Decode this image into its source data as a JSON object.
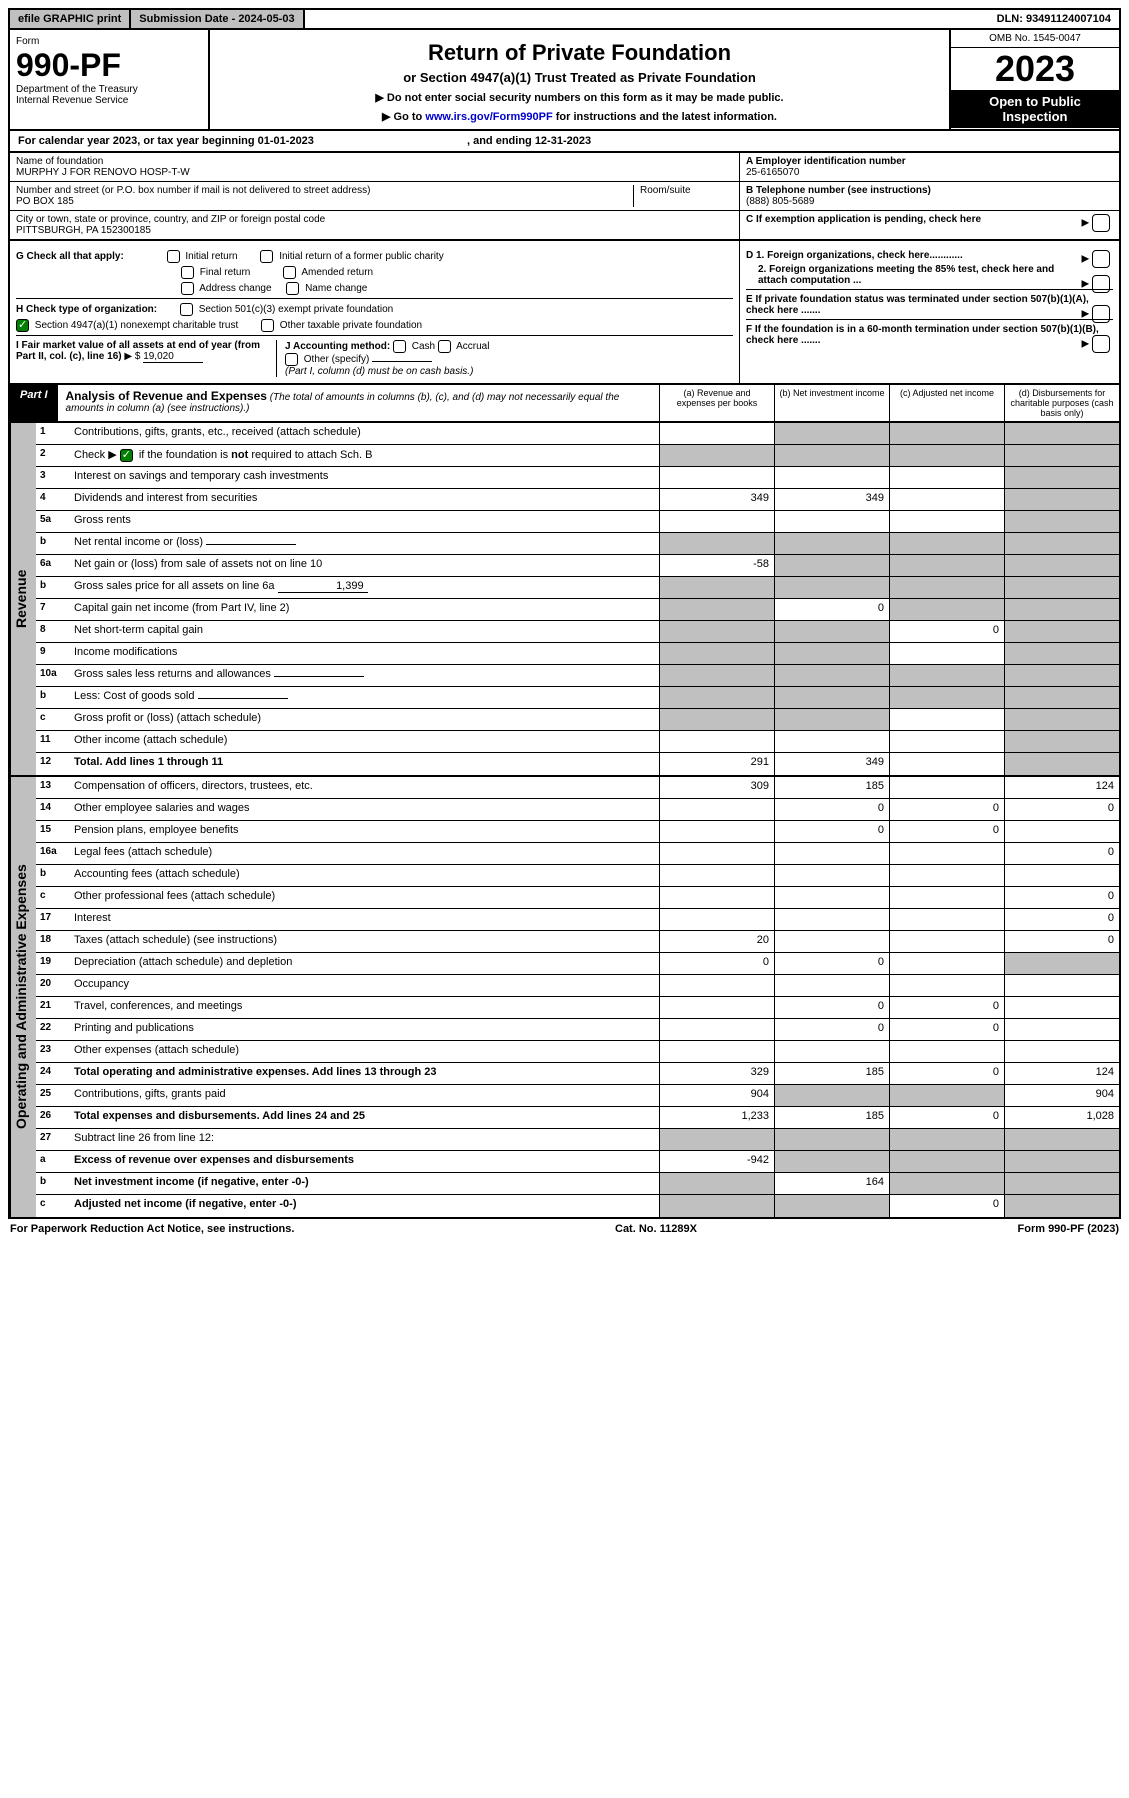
{
  "top": {
    "efile": "efile GRAPHIC print",
    "submission": "Submission Date - 2024-05-03",
    "dln": "DLN: 93491124007104"
  },
  "header": {
    "form_label": "Form",
    "form_num": "990-PF",
    "dept": "Department of the Treasury\nInternal Revenue Service",
    "title": "Return of Private Foundation",
    "subtitle": "or Section 4947(a)(1) Trust Treated as Private Foundation",
    "note1": "▶ Do not enter social security numbers on this form as it may be made public.",
    "note2_pre": "▶ Go to ",
    "note2_link": "www.irs.gov/Form990PF",
    "note2_post": " for instructions and the latest information.",
    "omb": "OMB No. 1545-0047",
    "year": "2023",
    "open": "Open to Public Inspection"
  },
  "cal": {
    "text": "For calendar year 2023, or tax year beginning 01-01-2023",
    "ending": ", and ending 12-31-2023"
  },
  "addr": {
    "name_label": "Name of foundation",
    "name": "MURPHY J FOR RENOVO HOSP-T-W",
    "street_label": "Number and street (or P.O. box number if mail is not delivered to street address)",
    "street": "PO BOX 185",
    "room_label": "Room/suite",
    "city_label": "City or town, state or province, country, and ZIP or foreign postal code",
    "city": "PITTSBURGH, PA  152300185",
    "ein_label": "A Employer identification number",
    "ein": "25-6165070",
    "phone_label": "B Telephone number (see instructions)",
    "phone": "(888) 805-5689",
    "c_label": "C If exemption application is pending, check here"
  },
  "checks": {
    "g_label": "G Check all that apply:",
    "g_opts": [
      "Initial return",
      "Initial return of a former public charity",
      "Final return",
      "Amended return",
      "Address change",
      "Name change"
    ],
    "h_label": "H Check type of organization:",
    "h_501": "Section 501(c)(3) exempt private foundation",
    "h_4947": "Section 4947(a)(1) nonexempt charitable trust",
    "h_other": "Other taxable private foundation",
    "i_label": "I Fair market value of all assets at end of year (from Part II, col. (c), line 16)",
    "i_val": "19,020",
    "j_label": "J Accounting method:",
    "j_cash": "Cash",
    "j_accrual": "Accrual",
    "j_other": "Other (specify)",
    "j_note": "(Part I, column (d) must be on cash basis.)",
    "d1": "D 1. Foreign organizations, check here............",
    "d2": "2. Foreign organizations meeting the 85% test, check here and attach computation ...",
    "e": "E  If private foundation status was terminated under section 507(b)(1)(A), check here .......",
    "f": "F  If the foundation is in a 60-month termination under section 507(b)(1)(B), check here ......."
  },
  "part1": {
    "label": "Part I",
    "title": "Analysis of Revenue and Expenses",
    "title_note": "(The total of amounts in columns (b), (c), and (d) may not necessarily equal the amounts in column (a) (see instructions).)",
    "col_a": "(a) Revenue and expenses per books",
    "col_b": "(b) Net investment income",
    "col_c": "(c) Adjusted net income",
    "col_d": "(d) Disbursements for charitable purposes (cash basis only)"
  },
  "sides": {
    "revenue": "Revenue",
    "expenses": "Operating and Administrative Expenses"
  },
  "rows": [
    {
      "n": "1",
      "l": "Contributions, gifts, grants, etc., received (attach schedule)",
      "a": "",
      "b": "s",
      "c": "s",
      "d": "s"
    },
    {
      "n": "2",
      "l": "Check ▶ ☑ if the foundation is not required to attach Sch. B",
      "a": "s",
      "b": "s",
      "c": "s",
      "d": "s",
      "checked": true
    },
    {
      "n": "3",
      "l": "Interest on savings and temporary cash investments",
      "a": "",
      "b": "",
      "c": "",
      "d": "s"
    },
    {
      "n": "4",
      "l": "Dividends and interest from securities",
      "a": "349",
      "b": "349",
      "c": "",
      "d": "s"
    },
    {
      "n": "5a",
      "l": "Gross rents",
      "a": "",
      "b": "",
      "c": "",
      "d": "s"
    },
    {
      "n": "b",
      "l": "Net rental income or (loss)",
      "a": "s",
      "b": "s",
      "c": "s",
      "d": "s",
      "inline": ""
    },
    {
      "n": "6a",
      "l": "Net gain or (loss) from sale of assets not on line 10",
      "a": "-58",
      "b": "s",
      "c": "s",
      "d": "s"
    },
    {
      "n": "b",
      "l": "Gross sales price for all assets on line 6a",
      "a": "s",
      "b": "s",
      "c": "s",
      "d": "s",
      "inline": "1,399"
    },
    {
      "n": "7",
      "l": "Capital gain net income (from Part IV, line 2)",
      "a": "s",
      "b": "0",
      "c": "s",
      "d": "s"
    },
    {
      "n": "8",
      "l": "Net short-term capital gain",
      "a": "s",
      "b": "s",
      "c": "0",
      "d": "s"
    },
    {
      "n": "9",
      "l": "Income modifications",
      "a": "s",
      "b": "s",
      "c": "",
      "d": "s"
    },
    {
      "n": "10a",
      "l": "Gross sales less returns and allowances",
      "a": "s",
      "b": "s",
      "c": "s",
      "d": "s",
      "inline": ""
    },
    {
      "n": "b",
      "l": "Less: Cost of goods sold",
      "a": "s",
      "b": "s",
      "c": "s",
      "d": "s",
      "inline": ""
    },
    {
      "n": "c",
      "l": "Gross profit or (loss) (attach schedule)",
      "a": "s",
      "b": "s",
      "c": "",
      "d": "s"
    },
    {
      "n": "11",
      "l": "Other income (attach schedule)",
      "a": "",
      "b": "",
      "c": "",
      "d": "s"
    },
    {
      "n": "12",
      "l": "Total. Add lines 1 through 11",
      "a": "291",
      "b": "349",
      "c": "",
      "d": "s",
      "bold": true
    }
  ],
  "exp_rows": [
    {
      "n": "13",
      "l": "Compensation of officers, directors, trustees, etc.",
      "a": "309",
      "b": "185",
      "c": "",
      "d": "124"
    },
    {
      "n": "14",
      "l": "Other employee salaries and wages",
      "a": "",
      "b": "0",
      "c": "0",
      "d": "0"
    },
    {
      "n": "15",
      "l": "Pension plans, employee benefits",
      "a": "",
      "b": "0",
      "c": "0",
      "d": ""
    },
    {
      "n": "16a",
      "l": "Legal fees (attach schedule)",
      "a": "",
      "b": "",
      "c": "",
      "d": "0"
    },
    {
      "n": "b",
      "l": "Accounting fees (attach schedule)",
      "a": "",
      "b": "",
      "c": "",
      "d": ""
    },
    {
      "n": "c",
      "l": "Other professional fees (attach schedule)",
      "a": "",
      "b": "",
      "c": "",
      "d": "0"
    },
    {
      "n": "17",
      "l": "Interest",
      "a": "",
      "b": "",
      "c": "",
      "d": "0"
    },
    {
      "n": "18",
      "l": "Taxes (attach schedule) (see instructions)",
      "a": "20",
      "b": "",
      "c": "",
      "d": "0"
    },
    {
      "n": "19",
      "l": "Depreciation (attach schedule) and depletion",
      "a": "0",
      "b": "0",
      "c": "",
      "d": "s"
    },
    {
      "n": "20",
      "l": "Occupancy",
      "a": "",
      "b": "",
      "c": "",
      "d": ""
    },
    {
      "n": "21",
      "l": "Travel, conferences, and meetings",
      "a": "",
      "b": "0",
      "c": "0",
      "d": ""
    },
    {
      "n": "22",
      "l": "Printing and publications",
      "a": "",
      "b": "0",
      "c": "0",
      "d": ""
    },
    {
      "n": "23",
      "l": "Other expenses (attach schedule)",
      "a": "",
      "b": "",
      "c": "",
      "d": ""
    },
    {
      "n": "24",
      "l": "Total operating and administrative expenses. Add lines 13 through 23",
      "a": "329",
      "b": "185",
      "c": "0",
      "d": "124",
      "bold": true
    },
    {
      "n": "25",
      "l": "Contributions, gifts, grants paid",
      "a": "904",
      "b": "s",
      "c": "s",
      "d": "904"
    },
    {
      "n": "26",
      "l": "Total expenses and disbursements. Add lines 24 and 25",
      "a": "1,233",
      "b": "185",
      "c": "0",
      "d": "1,028",
      "bold": true
    },
    {
      "n": "27",
      "l": "Subtract line 26 from line 12:",
      "a": "s",
      "b": "s",
      "c": "s",
      "d": "s"
    },
    {
      "n": "a",
      "l": "Excess of revenue over expenses and disbursements",
      "a": "-942",
      "b": "s",
      "c": "s",
      "d": "s",
      "bold": true
    },
    {
      "n": "b",
      "l": "Net investment income (if negative, enter -0-)",
      "a": "s",
      "b": "164",
      "c": "s",
      "d": "s",
      "bold": true
    },
    {
      "n": "c",
      "l": "Adjusted net income (if negative, enter -0-)",
      "a": "s",
      "b": "s",
      "c": "0",
      "d": "s",
      "bold": true
    }
  ],
  "footer": {
    "left": "For Paperwork Reduction Act Notice, see instructions.",
    "mid": "Cat. No. 11289X",
    "right": "Form 990-PF (2023)"
  }
}
